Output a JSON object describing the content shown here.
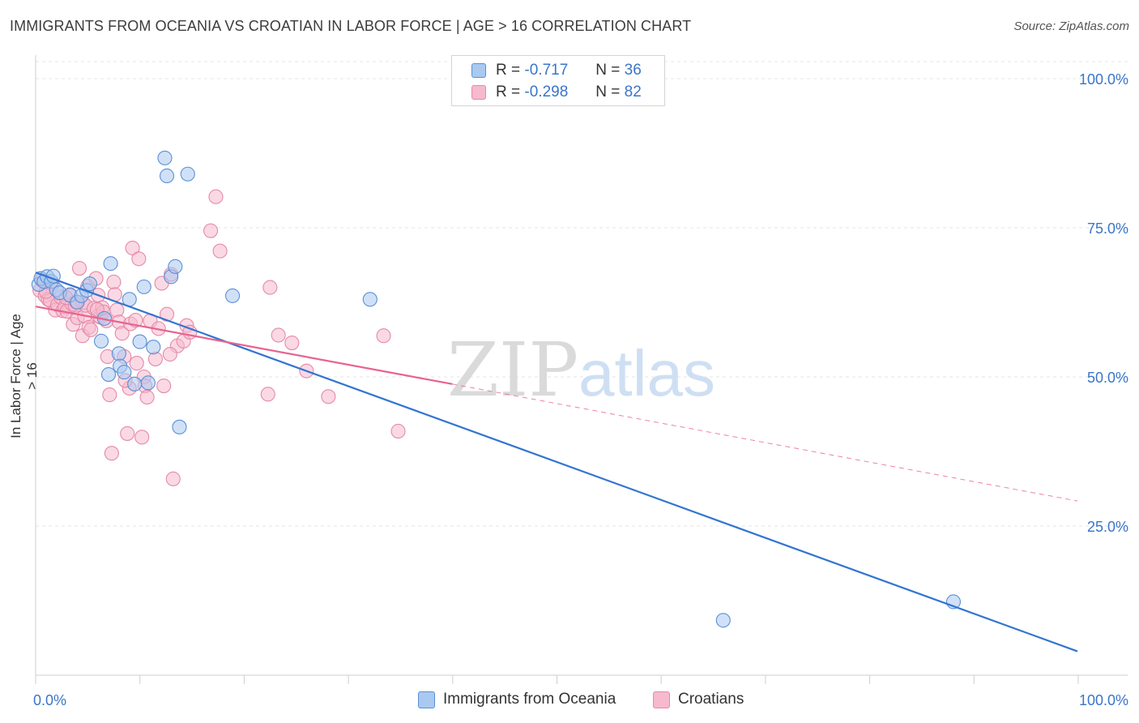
{
  "title": "IMMIGRANTS FROM OCEANIA VS CROATIAN IN LABOR FORCE | AGE > 16 CORRELATION CHART",
  "source": "Source: ZipAtlas.com",
  "watermark": {
    "zip": "ZIP",
    "atlas": "atlas"
  },
  "legend_top": {
    "rows": [
      {
        "r_label": "R =",
        "r_value": "-0.717",
        "n_label": "N =",
        "n_value": "36"
      },
      {
        "r_label": "R =",
        "r_value": "-0.298",
        "n_label": "N =",
        "n_value": "82"
      }
    ]
  },
  "colors": {
    "blue_fill": "#a9c9f0",
    "blue_stroke": "#5c8fd6",
    "blue_line": "#3274d2",
    "pink_fill": "#f6b9cd",
    "pink_stroke": "#e58aa8",
    "pink_line": "#e8638f",
    "axis_text": "#3a75c9",
    "grid": "#e4e4e4"
  },
  "chart_data": {
    "type": "scatter",
    "title": "IMMIGRANTS FROM OCEANIA VS CROATIAN IN LABOR FORCE | AGE > 16 CORRELATION CHART",
    "xlabel": "",
    "ylabel": "In Labor Force | Age > 16",
    "xlim": [
      0,
      100
    ],
    "ylim": [
      0,
      103
    ],
    "x_tick_labels": [
      "0.0%",
      "100.0%"
    ],
    "y_ticks": [
      25,
      50,
      75,
      100
    ],
    "y_tick_labels": [
      "25.0%",
      "50.0%",
      "75.0%",
      "100.0%"
    ],
    "grid": true,
    "legend_position": "bottom",
    "series": [
      {
        "name": "Immigrants from Oceania",
        "color": "#a9c9f0",
        "r": -0.717,
        "n": 36,
        "trend": {
          "x": [
            0,
            100
          ],
          "y": [
            67.5,
            4.0
          ],
          "style": "solid"
        },
        "points": [
          [
            0.3,
            65.5
          ],
          [
            0.5,
            66.5
          ],
          [
            0.8,
            66.0
          ],
          [
            1.1,
            66.8
          ],
          [
            1.5,
            66.0
          ],
          [
            1.7,
            66.9
          ],
          [
            2.0,
            64.6
          ],
          [
            2.3,
            64.1
          ],
          [
            3.3,
            63.7
          ],
          [
            4.0,
            62.5
          ],
          [
            4.4,
            63.6
          ],
          [
            4.9,
            64.5
          ],
          [
            5.2,
            65.6
          ],
          [
            6.3,
            56.0
          ],
          [
            6.6,
            59.8
          ],
          [
            7.0,
            50.4
          ],
          [
            7.2,
            69.0
          ],
          [
            8.0,
            53.9
          ],
          [
            8.1,
            51.8
          ],
          [
            8.5,
            50.8
          ],
          [
            9.0,
            63.0
          ],
          [
            9.5,
            48.8
          ],
          [
            10.0,
            55.9
          ],
          [
            10.4,
            65.1
          ],
          [
            10.8,
            49.0
          ],
          [
            11.3,
            55.0
          ],
          [
            12.4,
            86.7
          ],
          [
            12.6,
            83.7
          ],
          [
            13.0,
            66.8
          ],
          [
            13.4,
            68.5
          ],
          [
            13.8,
            41.6
          ],
          [
            14.6,
            84.0
          ],
          [
            18.9,
            63.6
          ],
          [
            32.1,
            63.0
          ],
          [
            66.0,
            9.2
          ],
          [
            88.1,
            12.3
          ]
        ]
      },
      {
        "name": "Croatians",
        "color": "#f6b9cd",
        "r": -0.298,
        "n": 82,
        "trend": {
          "x": [
            0,
            40
          ],
          "y": [
            61.8,
            48.8
          ],
          "style": "solid",
          "extension": {
            "x": [
              40,
              100
            ],
            "y": [
              48.8,
              29.2
            ],
            "style": "dashed"
          }
        },
        "points": [
          [
            0.4,
            64.5
          ],
          [
            0.6,
            66.2
          ],
          [
            0.9,
            63.6
          ],
          [
            1.2,
            63.0
          ],
          [
            1.4,
            62.8
          ],
          [
            1.6,
            65.6
          ],
          [
            1.9,
            61.2
          ],
          [
            2.1,
            62.1
          ],
          [
            2.4,
            63.4
          ],
          [
            2.6,
            61.1
          ],
          [
            2.8,
            61.7
          ],
          [
            3.0,
            61.0
          ],
          [
            3.3,
            63.8
          ],
          [
            3.5,
            62.2
          ],
          [
            3.6,
            58.8
          ],
          [
            3.8,
            61.9
          ],
          [
            4.0,
            59.9
          ],
          [
            4.2,
            68.2
          ],
          [
            4.5,
            62.5
          ],
          [
            4.5,
            56.9
          ],
          [
            4.7,
            60.2
          ],
          [
            4.8,
            62.0
          ],
          [
            5.0,
            65.2
          ],
          [
            5.1,
            58.3
          ],
          [
            5.3,
            57.9
          ],
          [
            5.6,
            61.5
          ],
          [
            5.8,
            66.5
          ],
          [
            6.0,
            60.2
          ],
          [
            6.0,
            63.7
          ],
          [
            6.2,
            60.0
          ],
          [
            6.4,
            61.6
          ],
          [
            6.5,
            60.9
          ],
          [
            6.8,
            59.4
          ],
          [
            6.9,
            53.4
          ],
          [
            7.1,
            47.0
          ],
          [
            7.3,
            37.2
          ],
          [
            7.5,
            65.9
          ],
          [
            7.6,
            63.8
          ],
          [
            7.8,
            61.2
          ],
          [
            8.0,
            59.2
          ],
          [
            8.3,
            57.3
          ],
          [
            8.5,
            53.4
          ],
          [
            8.8,
            40.5
          ],
          [
            9.0,
            48.1
          ],
          [
            9.1,
            58.9
          ],
          [
            9.3,
            71.6
          ],
          [
            9.6,
            59.5
          ],
          [
            9.9,
            69.8
          ],
          [
            10.2,
            39.9
          ],
          [
            10.4,
            50.0
          ],
          [
            10.5,
            48.5
          ],
          [
            10.7,
            46.6
          ],
          [
            11.0,
            59.4
          ],
          [
            11.8,
            58.1
          ],
          [
            12.1,
            65.7
          ],
          [
            12.3,
            48.5
          ],
          [
            12.6,
            60.5
          ],
          [
            13.0,
            67.2
          ],
          [
            13.2,
            32.9
          ],
          [
            13.6,
            55.2
          ],
          [
            14.2,
            56.0
          ],
          [
            14.5,
            58.6
          ],
          [
            14.8,
            57.5
          ],
          [
            16.8,
            74.5
          ],
          [
            17.3,
            80.2
          ],
          [
            17.7,
            71.1
          ],
          [
            22.3,
            47.1
          ],
          [
            22.5,
            65.0
          ],
          [
            23.3,
            57.0
          ],
          [
            24.6,
            55.7
          ],
          [
            26.0,
            51.0
          ],
          [
            28.1,
            46.7
          ],
          [
            33.4,
            56.9
          ],
          [
            34.8,
            40.9
          ],
          [
            1.0,
            64.3
          ],
          [
            2.9,
            63.3
          ],
          [
            3.9,
            62.6
          ],
          [
            5.9,
            61.3
          ],
          [
            8.6,
            49.4
          ],
          [
            9.7,
            52.3
          ],
          [
            11.5,
            53.0
          ],
          [
            12.9,
            53.8
          ]
        ]
      }
    ]
  }
}
